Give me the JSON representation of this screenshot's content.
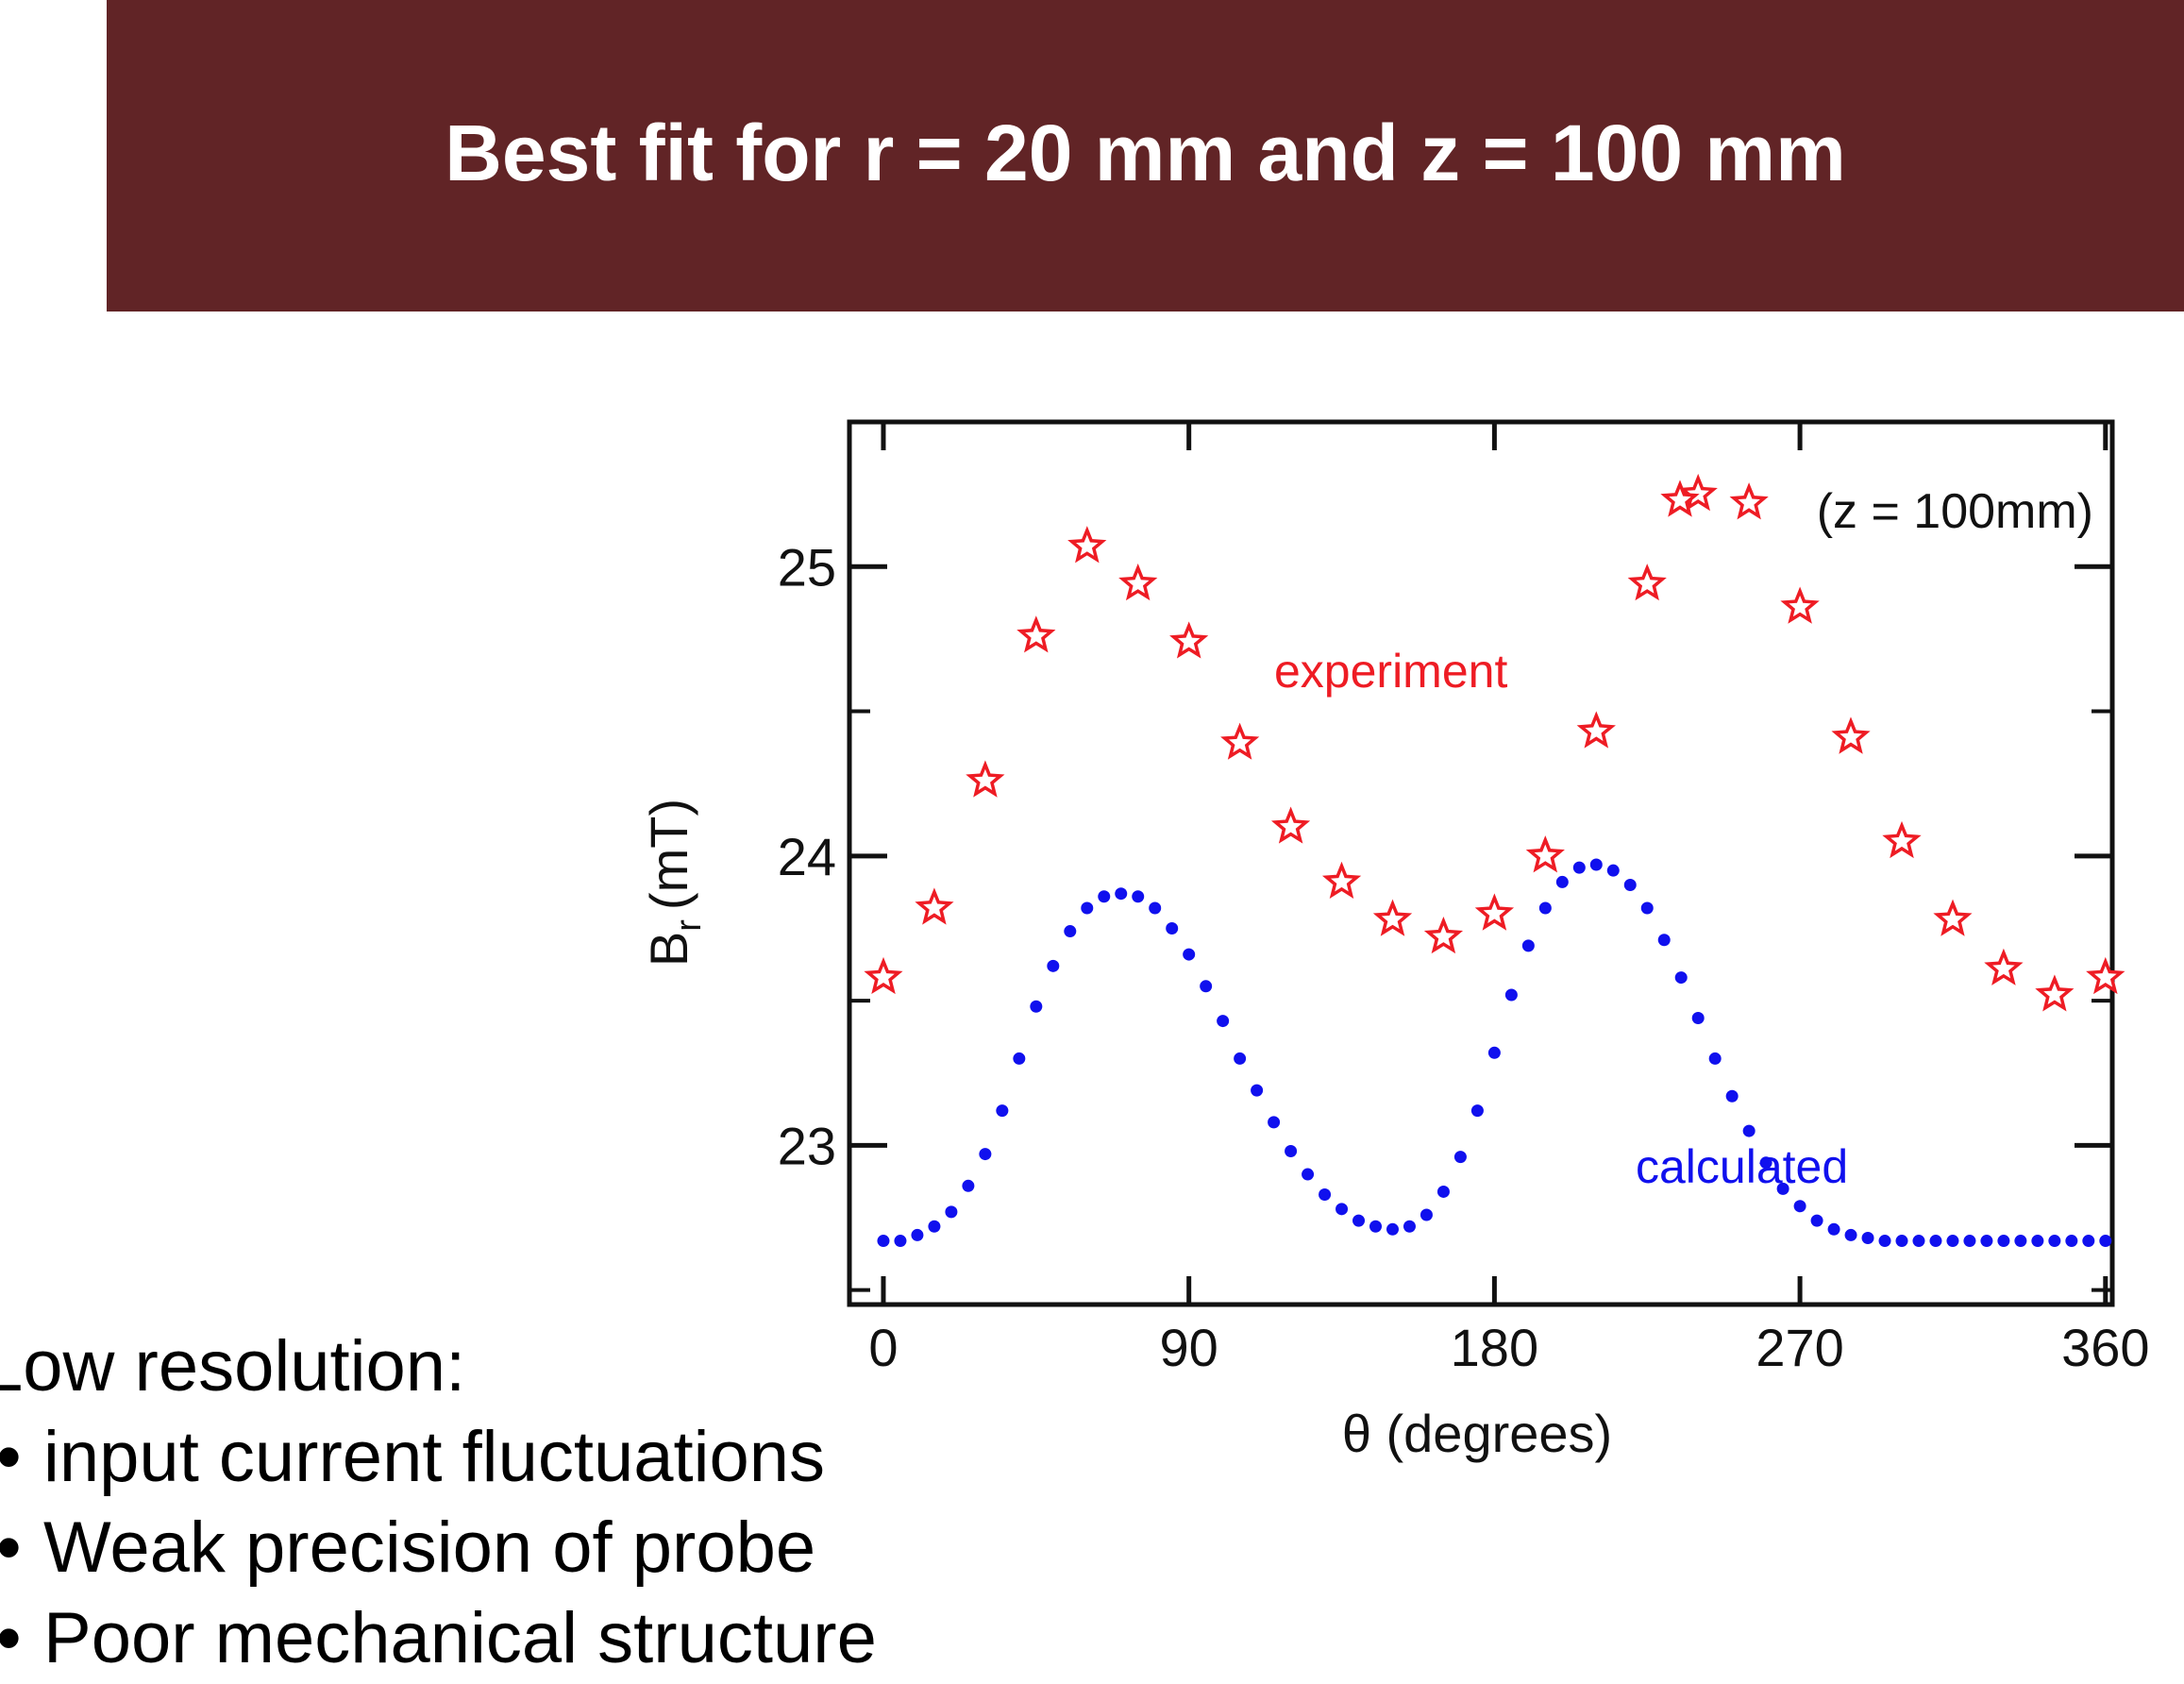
{
  "header": {
    "title": "Best fit for r = 20 mm and z = 100 mm"
  },
  "colors": {
    "header_bg": "#612426",
    "experiment": "#ee1c24",
    "calculated": "#1010ee",
    "axis": "#111111"
  },
  "notes": {
    "heading": "Low resolution:",
    "bullet_symbol": "•",
    "items": [
      "input current fluctuations",
      "Weak precision of probe",
      "Poor mechanical structure"
    ]
  },
  "chart_data": {
    "type": "scatter",
    "title": "",
    "xlabel": "θ (degrees)",
    "ylabel_main": "B",
    "ylabel_sub": "r",
    "ylabel_unit": "(mT)",
    "xlim": [
      -10,
      362
    ],
    "ylim": [
      22.45,
      25.5
    ],
    "x_ticks": [
      0,
      90,
      180,
      270,
      360
    ],
    "x_tick_labels": [
      "0",
      "90",
      "180",
      "270",
      "360"
    ],
    "y_ticks": [
      23,
      24,
      25
    ],
    "y_tick_labels": [
      "23",
      "24",
      "25"
    ],
    "y_minor_ticks": [
      22.5,
      23.5,
      24.5
    ],
    "annotation": "(z = 100mm)",
    "grid": false,
    "series": [
      {
        "name": "experiment",
        "marker": "star-outline",
        "color": "#ee1c24",
        "x": [
          0,
          15,
          30,
          45,
          60,
          75,
          90,
          105,
          120,
          135,
          150,
          165,
          180,
          195,
          210,
          225,
          240,
          255,
          270,
          285,
          300,
          315,
          330,
          345,
          360
        ],
        "y": [
          23.58,
          23.82,
          24.26,
          24.76,
          25.07,
          24.94,
          24.74,
          24.39,
          24.1,
          23.91,
          23.78,
          23.72,
          23.8,
          24.0,
          24.43,
          24.94,
          25.25,
          25.22,
          24.86,
          24.41,
          24.05,
          23.78,
          23.61,
          23.52,
          23.58
        ]
      },
      {
        "name": "calculated",
        "marker": "dot",
        "color": "#1010ee",
        "x": [
          0,
          5,
          10,
          15,
          20,
          25,
          30,
          35,
          40,
          45,
          50,
          55,
          60,
          65,
          70,
          75,
          80,
          85,
          90,
          95,
          100,
          105,
          110,
          115,
          120,
          125,
          130,
          135,
          140,
          145,
          150,
          155,
          160,
          165,
          170,
          175,
          180,
          185,
          190,
          195,
          200,
          205,
          210,
          215,
          220,
          225,
          230,
          235,
          240,
          245,
          250,
          255,
          260,
          265,
          270,
          275,
          280,
          285,
          290,
          295,
          300,
          305,
          310,
          315,
          320,
          325,
          330,
          335,
          340,
          345,
          350,
          355,
          360
        ],
        "y": [
          22.67,
          22.67,
          22.69,
          22.72,
          22.77,
          22.86,
          22.97,
          23.12,
          23.3,
          23.48,
          23.62,
          23.74,
          23.82,
          23.86,
          23.87,
          23.86,
          23.82,
          23.75,
          23.66,
          23.55,
          23.43,
          23.3,
          23.19,
          23.08,
          22.98,
          22.9,
          22.83,
          22.78,
          22.74,
          22.72,
          22.71,
          22.72,
          22.76,
          22.84,
          22.96,
          23.12,
          23.32,
          23.52,
          23.69,
          23.82,
          23.91,
          23.96,
          23.97,
          23.95,
          23.9,
          23.82,
          23.71,
          23.58,
          23.44,
          23.3,
          23.17,
          23.05,
          22.94,
          22.85,
          22.79,
          22.74,
          22.71,
          22.69,
          22.68,
          22.67,
          22.67,
          22.67,
          22.67,
          22.67,
          22.67,
          22.67,
          22.67,
          22.67,
          22.67,
          22.67,
          22.67,
          22.67,
          22.67
        ]
      }
    ]
  }
}
